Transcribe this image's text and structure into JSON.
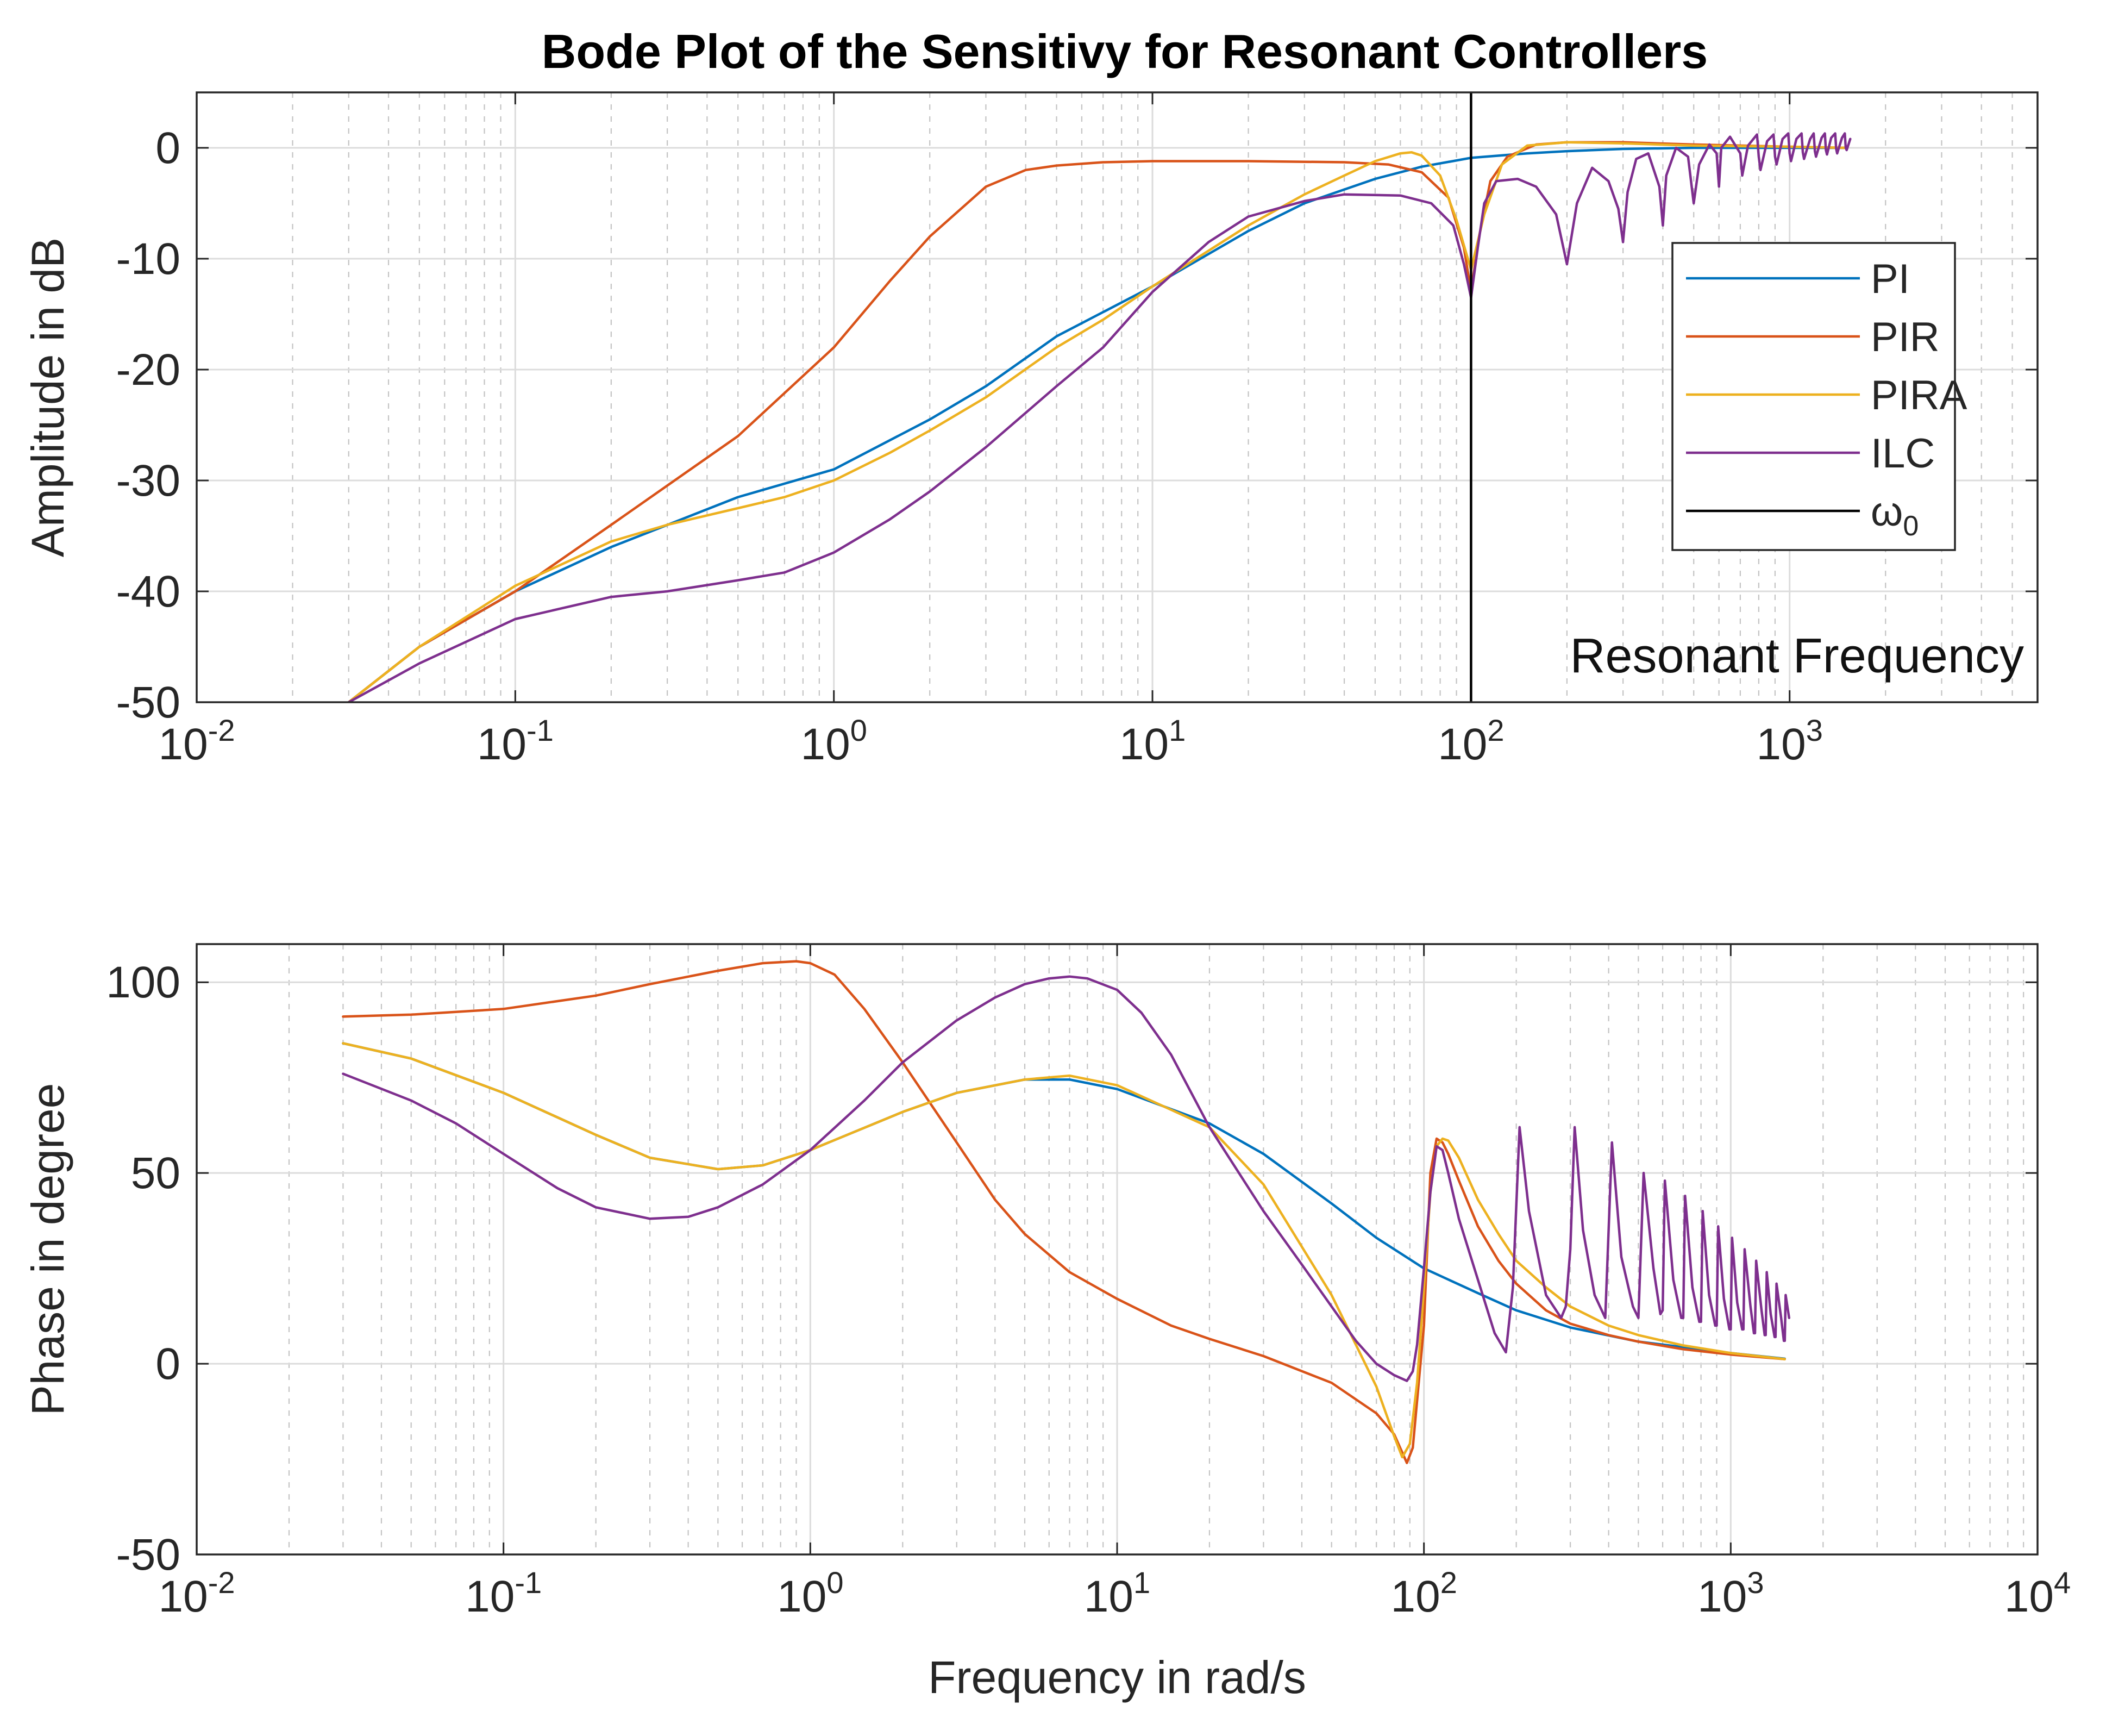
{
  "chart_data": {
    "type": "line",
    "title": "Bode Plot of the Sensitivy for Resonant Controllers",
    "xscale": "log",
    "colors": {
      "PI": "#0072BD",
      "PIR": "#D95319",
      "PIRA": "#EDB120",
      "ILC": "#7E2F8E",
      "omega0": "#000000"
    },
    "legend": {
      "placement": "right",
      "entries": [
        {
          "label": "PI",
          "color": "#0072BD"
        },
        {
          "label": "PIR",
          "color": "#D95319"
        },
        {
          "label": "PIRA",
          "color": "#EDB120"
        },
        {
          "label": "ILC",
          "color": "#7E2F8E"
        },
        {
          "label": "ω",
          "sub": "0",
          "color": "#000000"
        }
      ]
    },
    "panels": [
      {
        "id": "magnitude",
        "ylabel": "Amplitude in dB",
        "xlabel": "",
        "xlim": [
          0.01,
          6000
        ],
        "ylim": [
          -50,
          5
        ],
        "xticks": [
          {
            "base": "10",
            "exp": "-2"
          },
          {
            "base": "10",
            "exp": "-1"
          },
          {
            "base": "10",
            "exp": "0"
          },
          {
            "base": "10",
            "exp": "1"
          },
          {
            "base": "10",
            "exp": "2"
          },
          {
            "base": "10",
            "exp": "3"
          }
        ],
        "yticks": [
          "0",
          "-10",
          "-20",
          "-30",
          "-40",
          "-50"
        ],
        "ytick_values": [
          0,
          -10,
          -20,
          -30,
          -40,
          -50
        ],
        "grid": true,
        "vline": {
          "x": 100,
          "label": "ω0"
        },
        "annotation": "Resonant Frequency",
        "series": [
          {
            "name": "PI",
            "x": [
              0.03,
              0.05,
              0.1,
              0.2,
              0.5,
              1,
              2,
              3,
              5,
              10,
              20,
              30,
              50,
              70,
              100,
              150,
              200,
              300,
              500,
              1000,
              1500
            ],
            "y": [
              -50,
              -45,
              -40,
              -36,
              -31.5,
              -29,
              -24.5,
              -21.5,
              -17,
              -12.5,
              -7.5,
              -5,
              -2.8,
              -1.7,
              -0.9,
              -0.5,
              -0.3,
              -0.1,
              0,
              0,
              0
            ]
          },
          {
            "name": "PIR",
            "x": [
              0.03,
              0.05,
              0.1,
              0.2,
              0.5,
              1,
              1.5,
              2,
              3,
              4,
              5,
              7,
              10,
              20,
              40,
              55,
              70,
              85,
              95,
              100,
              106,
              115,
              130,
              160,
              200,
              300,
              500,
              1000,
              1500
            ],
            "y": [
              -50,
              -45,
              -40,
              -34,
              -26,
              -18,
              -12,
              -8,
              -3.5,
              -2,
              -1.6,
              -1.3,
              -1.2,
              -1.2,
              -1.3,
              -1.5,
              -2.2,
              -4.5,
              -9,
              -13,
              -8,
              -3,
              -0.8,
              0.3,
              0.5,
              0.5,
              0.3,
              0.1,
              0
            ]
          },
          {
            "name": "PIRA",
            "x": [
              0.03,
              0.05,
              0.1,
              0.2,
              0.3,
              0.5,
              0.7,
              1,
              1.5,
              2,
              3,
              5,
              7,
              10,
              20,
              30,
              40,
              50,
              60,
              65,
              70,
              80,
              90,
              100,
              110,
              125,
              150,
              200,
              300,
              500,
              1000,
              1500
            ],
            "y": [
              -50,
              -45,
              -39.5,
              -35.5,
              -34,
              -32.5,
              -31.5,
              -30,
              -27.5,
              -25.5,
              -22.5,
              -18,
              -15.5,
              -12.5,
              -7,
              -4.2,
              -2.5,
              -1.2,
              -0.5,
              -0.4,
              -0.7,
              -2.5,
              -6.5,
              -11,
              -6,
              -1.5,
              0.2,
              0.5,
              0.4,
              0.2,
              0.1,
              0
            ]
          },
          {
            "name": "ILC",
            "x": [
              0.03,
              0.05,
              0.1,
              0.2,
              0.3,
              0.5,
              0.7,
              1,
              1.5,
              2,
              3,
              5,
              7,
              10,
              15,
              20,
              30,
              40,
              60,
              75,
              88,
              95,
              100,
              105,
              110,
              120,
              140,
              160,
              185,
              200,
              215,
              240,
              270,
              290,
              300,
              310,
              330,
              360,
              390,
              400,
              410,
              440,
              480,
              500,
              520,
              560,
              590,
              600,
              610,
              650,
              700,
              710,
              740,
              790,
              800,
              810,
              850,
              890,
              900,
              910,
              950,
              990,
              1000,
              1010,
              1050,
              1090,
              1100,
              1110,
              1160,
              1190,
              1200,
              1210,
              1260,
              1290,
              1300,
              1310,
              1350,
              1390,
              1400,
              1410,
              1460,
              1490,
              1500,
              1510,
              1550
            ],
            "y": [
              -50,
              -46.5,
              -42.5,
              -40.5,
              -40,
              -39,
              -38.3,
              -36.5,
              -33.5,
              -31,
              -27,
              -21.5,
              -18,
              -13,
              -8.5,
              -6.2,
              -4.8,
              -4.2,
              -4.3,
              -5,
              -7,
              -10.5,
              -13.5,
              -9,
              -5,
              -3,
              -2.8,
              -3.5,
              -6,
              -10.5,
              -5,
              -1.8,
              -3,
              -5.5,
              -8.5,
              -4,
              -1,
              -0.5,
              -3.5,
              -7,
              -2.5,
              0,
              -0.8,
              -5,
              -1.5,
              0.3,
              -0.5,
              -3.5,
              0,
              1,
              -0.5,
              -2.5,
              0.2,
              1.2,
              -0.8,
              -2,
              0.6,
              1.2,
              -0.8,
              -1.5,
              0.8,
              1.3,
              -0.5,
              -1.2,
              0.8,
              1.3,
              -0.4,
              -1,
              0.8,
              1.3,
              -0.3,
              -0.8,
              0.9,
              1.3,
              -0.2,
              -0.6,
              0.9,
              1.3,
              -0.1,
              -0.5,
              0.9,
              1.3,
              0,
              -0.2,
              0.8
            ]
          }
        ]
      },
      {
        "id": "phase",
        "ylabel": "Phase in degree",
        "xlabel": "Frequency in rad/s",
        "xlim": [
          0.01,
          10000
        ],
        "ylim": [
          -50,
          110
        ],
        "xticks": [
          {
            "base": "10",
            "exp": "-2"
          },
          {
            "base": "10",
            "exp": "-1"
          },
          {
            "base": "10",
            "exp": "0"
          },
          {
            "base": "10",
            "exp": "1"
          },
          {
            "base": "10",
            "exp": "2"
          },
          {
            "base": "10",
            "exp": "3"
          },
          {
            "base": "10",
            "exp": "4"
          }
        ],
        "yticks": [
          "100",
          "50",
          "0",
          "-50"
        ],
        "ytick_values": [
          100,
          50,
          0,
          -50
        ],
        "grid": true,
        "series": [
          {
            "name": "PI",
            "x": [
              0.03,
              0.05,
              0.1,
              0.2,
              0.3,
              0.5,
              0.7,
              1,
              2,
              3,
              5,
              7,
              10,
              20,
              30,
              50,
              70,
              100,
              150,
              200,
              300,
              500,
              1000,
              1500
            ],
            "y": [
              84,
              80,
              71,
              60,
              54,
              51,
              52,
              56,
              66,
              71,
              74.5,
              74.5,
              72,
              63,
              55,
              42,
              33,
              25,
              18.5,
              14,
              9.5,
              5.8,
              2.8,
              1.3
            ]
          },
          {
            "name": "PIR",
            "x": [
              0.03,
              0.05,
              0.1,
              0.2,
              0.3,
              0.5,
              0.7,
              0.9,
              1,
              1.2,
              1.5,
              2,
              3,
              4,
              5,
              7,
              10,
              15,
              20,
              30,
              50,
              70,
              80,
              88,
              92,
              100,
              105,
              110,
              115,
              120,
              130,
              150,
              175,
              200,
              250,
              300,
              400,
              500,
              700,
              1000,
              1500
            ],
            "y": [
              91,
              91.5,
              93,
              96.5,
              99.5,
              103,
              105,
              105.5,
              105,
              102,
              93,
              79,
              58,
              43,
              34,
              24,
              17,
              10,
              6.5,
              2,
              -5,
              -13,
              -18.5,
              -26,
              -22,
              10,
              50,
              59,
              58,
              55,
              48,
              36,
              27,
              21,
              14,
              10.5,
              7.5,
              5.8,
              3.8,
              2.4,
              1.2
            ]
          },
          {
            "name": "PIRA",
            "x": [
              0.03,
              0.05,
              0.1,
              0.2,
              0.3,
              0.5,
              0.7,
              1,
              2,
              3,
              5,
              7,
              10,
              20,
              30,
              50,
              70,
              80,
              85,
              90,
              95,
              100,
              105,
              110,
              115,
              120,
              130,
              150,
              175,
              200,
              250,
              300,
              400,
              500,
              700,
              1000,
              1500
            ],
            "y": [
              84,
              80,
              71,
              60,
              54,
              51,
              52,
              56,
              66,
              71,
              74.5,
              75.5,
              73,
              62,
              47,
              18,
              -6,
              -19,
              -24.5,
              -21,
              -5,
              20,
              45,
              57,
              59,
              58.5,
              54,
              43,
              34,
              27,
              20,
              15,
              10,
              7.5,
              4.8,
              2.8,
              1.2
            ]
          },
          {
            "name": "ILC",
            "x": [
              0.03,
              0.05,
              0.07,
              0.1,
              0.15,
              0.2,
              0.3,
              0.4,
              0.5,
              0.7,
              1,
              1.5,
              2,
              3,
              4,
              5,
              6,
              7,
              8,
              10,
              12,
              15,
              20,
              30,
              40,
              50,
              60,
              70,
              80,
              88,
              92,
              95,
              100,
              105,
              110,
              115,
              120,
              130,
              150,
              170,
              185,
              195,
              205,
              220,
              250,
              280,
              290,
              300,
              310,
              330,
              360,
              390,
              400,
              410,
              440,
              480,
              500,
              520,
              560,
              590,
              600,
              610,
              650,
              690,
              700,
              710,
              750,
              790,
              800,
              810,
              850,
              890,
              900,
              910,
              950,
              990,
              1000,
              1010,
              1050,
              1090,
              1100,
              1110,
              1160,
              1190,
              1200,
              1210,
              1260,
              1290,
              1300,
              1310,
              1350,
              1390,
              1400,
              1410,
              1460,
              1490,
              1500,
              1510,
              1550
            ],
            "y": [
              76,
              69,
              63,
              55,
              46,
              41,
              38,
              38.5,
              41,
              47,
              56,
              69,
              79,
              90,
              96,
              99.5,
              101,
              101.5,
              101,
              98,
              92,
              81,
              62,
              40,
              26,
              15,
              6,
              0,
              -3,
              -4.5,
              -2,
              5,
              25,
              45,
              57,
              56,
              50,
              38,
              22,
              8,
              3,
              20,
              62,
              40,
              18,
              12,
              15,
              30,
              62,
              35,
              18,
              12,
              35,
              58,
              28,
              15,
              12,
              50,
              25,
              13,
              14,
              48,
              22,
              12,
              12,
              44,
              20,
              11,
              11,
              40,
              18,
              10,
              10,
              36,
              17,
              9,
              9,
              33,
              16,
              9,
              9,
              30,
              15,
              8,
              8,
              27,
              14,
              7.5,
              7.5,
              24,
              13,
              7,
              7,
              21,
              12,
              6,
              6,
              18,
              12
            ]
          }
        ]
      }
    ]
  }
}
